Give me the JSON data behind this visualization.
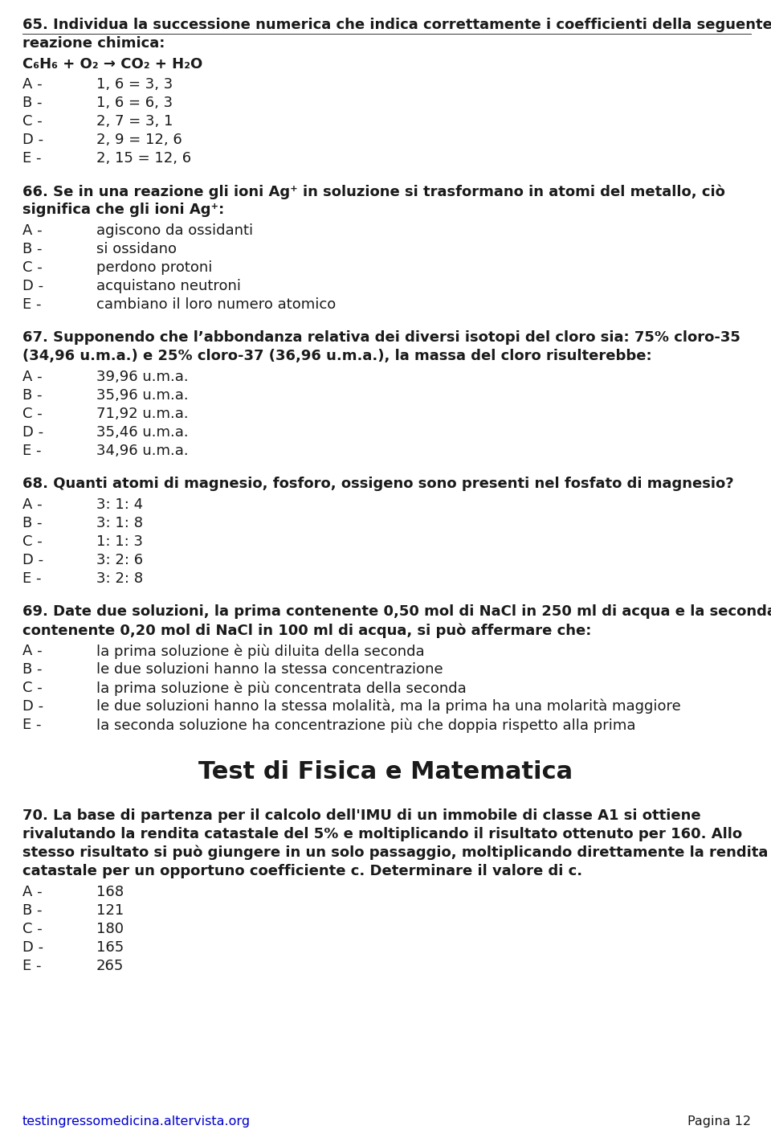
{
  "bg_color": "#ffffff",
  "text_color": "#1a1a1a",
  "link_color": "#0000cc",
  "footer_url": "testingressomedicina.altervista.org",
  "footer_page": "Pagina 12",
  "content": [
    {
      "type": "question_bold",
      "text": "65. Individua la successione numerica che indica correttamente i coefficienti della seguente reazione chimica:"
    },
    {
      "type": "formula_bold",
      "text": "C₆H₆ + O₂ → CO₂ + H₂O"
    },
    {
      "type": "choice",
      "letter": "A -",
      "text": "1, 6 = 3, 3"
    },
    {
      "type": "choice",
      "letter": "B -",
      "text": "1, 6 = 6, 3"
    },
    {
      "type": "choice",
      "letter": "C -",
      "text": "2, 7 = 3, 1"
    },
    {
      "type": "choice",
      "letter": "D -",
      "text": "2, 9 = 12, 6"
    },
    {
      "type": "choice",
      "letter": "E -",
      "text": "2, 15 = 12, 6"
    },
    {
      "type": "spacer",
      "size": 18
    },
    {
      "type": "question_bold",
      "text": "66. Se in una reazione gli ioni Ag⁺ in soluzione si trasformano in atomi del metallo, ciò significa che gli ioni Ag⁺:"
    },
    {
      "type": "choice",
      "letter": "A -",
      "text": "agiscono da ossidanti"
    },
    {
      "type": "choice",
      "letter": "B -",
      "text": "si ossidano"
    },
    {
      "type": "choice",
      "letter": "C -",
      "text": "perdono protoni"
    },
    {
      "type": "choice",
      "letter": "D -",
      "text": "acquistano neutroni"
    },
    {
      "type": "choice",
      "letter": "E -",
      "text": "cambiano il loro numero atomico"
    },
    {
      "type": "spacer",
      "size": 18
    },
    {
      "type": "question_bold",
      "text": "67. Supponendo che l’abbondanza relativa dei diversi isotopi del cloro sia: 75% cloro-35 (34,96 u.m.a.) e 25% cloro-37 (36,96 u.m.a.), la massa del cloro risulterebbe:"
    },
    {
      "type": "choice",
      "letter": "A -",
      "text": "39,96 u.m.a."
    },
    {
      "type": "choice",
      "letter": "B -",
      "text": "35,96 u.m.a."
    },
    {
      "type": "choice",
      "letter": "C -",
      "text": "71,92 u.m.a."
    },
    {
      "type": "choice",
      "letter": "D -",
      "text": "35,46 u.m.a."
    },
    {
      "type": "choice",
      "letter": "E -",
      "text": "34,96 u.m.a."
    },
    {
      "type": "spacer",
      "size": 18
    },
    {
      "type": "question_bold",
      "text": "68. Quanti atomi di magnesio, fosforo, ossigeno sono presenti nel fosfato di magnesio?"
    },
    {
      "type": "choice",
      "letter": "A -",
      "text": "3: 1: 4"
    },
    {
      "type": "choice",
      "letter": "B -",
      "text": "3: 1: 8"
    },
    {
      "type": "choice",
      "letter": "C -",
      "text": "1: 1: 3"
    },
    {
      "type": "choice",
      "letter": "D -",
      "text": "3: 2: 6"
    },
    {
      "type": "choice",
      "letter": "E -",
      "text": "3: 2: 8"
    },
    {
      "type": "spacer",
      "size": 18
    },
    {
      "type": "question_bold",
      "text": "69. Date due soluzioni, la prima contenente 0,50 mol di NaCl in 250 ml di acqua e la seconda contenente 0,20 mol di NaCl in 100 ml di acqua, si può affermare che:"
    },
    {
      "type": "choice",
      "letter": "A -",
      "text": "la prima soluzione è più diluita della seconda"
    },
    {
      "type": "choice",
      "letter": "B -",
      "text": "le due soluzioni hanno la stessa concentrazione"
    },
    {
      "type": "choice",
      "letter": "C -",
      "text": "la prima soluzione è più concentrata della seconda"
    },
    {
      "type": "choice",
      "letter": "D -",
      "text": "le due soluzioni hanno la stessa molalità, ma la prima ha una molarità maggiore"
    },
    {
      "type": "choice",
      "letter": "E -",
      "text": "la seconda soluzione ha concentrazione più che doppia rispetto alla prima"
    },
    {
      "type": "spacer",
      "size": 30
    },
    {
      "type": "section_title",
      "text": "Test di Fisica e Matematica"
    },
    {
      "type": "spacer",
      "size": 22
    },
    {
      "type": "question_bold",
      "text": "70. La base di partenza per il calcolo dell'IMU di un immobile di classe A1 si ottiene rivalutando la rendita catastale del 5% e moltiplicando il risultato ottenuto per 160. Allo stesso risultato si può giungere in un solo passaggio, moltiplicando direttamente la rendita catastale per un opportuno coefficiente c. Determinare il valore di c."
    },
    {
      "type": "choice",
      "letter": "A -",
      "text": "168"
    },
    {
      "type": "choice",
      "letter": "B -",
      "text": "121"
    },
    {
      "type": "choice",
      "letter": "C -",
      "text": "180"
    },
    {
      "type": "choice",
      "letter": "D -",
      "text": "165"
    },
    {
      "type": "choice",
      "letter": "E -",
      "text": "265"
    }
  ]
}
